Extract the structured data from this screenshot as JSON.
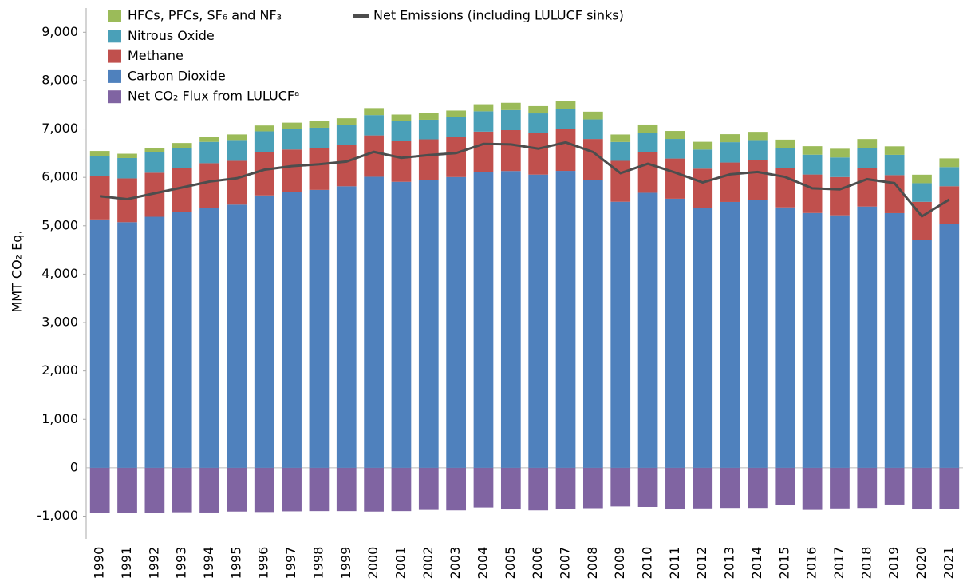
{
  "chart_data": {
    "type": "stacked-bar",
    "y_label": "MMT CO₂ Eq.",
    "categories": [
      "1990",
      "1991",
      "1992",
      "1993",
      "1994",
      "1995",
      "1996",
      "1997",
      "1998",
      "1999",
      "2000",
      "2001",
      "2002",
      "2003",
      "2004",
      "2005",
      "2006",
      "2007",
      "2008",
      "2009",
      "2010",
      "2011",
      "2012",
      "2013",
      "2014",
      "2015",
      "2016",
      "2017",
      "2018",
      "2019",
      "2020",
      "2021"
    ],
    "series": [
      {
        "name": "HFCs, PFCs, SF₆ and NF₃",
        "color": "#9bbb59",
        "values": [
          100,
          90,
          95,
          100,
          105,
          115,
          120,
          130,
          140,
          140,
          145,
          135,
          140,
          135,
          145,
          150,
          150,
          160,
          160,
          155,
          170,
          165,
          160,
          165,
          170,
          170,
          175,
          180,
          180,
          175,
          175,
          180
        ]
      },
      {
        "name": "Nitrous Oxide",
        "color": "#4aa0b8",
        "values": [
          415,
          420,
          420,
          415,
          440,
          430,
          435,
          425,
          420,
          415,
          420,
          410,
          405,
          405,
          420,
          415,
          410,
          420,
          405,
          390,
          400,
          405,
          395,
          420,
          420,
          420,
          410,
          405,
          420,
          420,
          385,
          395
        ]
      },
      {
        "name": "Methane",
        "color": "#c0504d",
        "values": [
          900,
          905,
          910,
          915,
          920,
          905,
          890,
          880,
          865,
          850,
          855,
          845,
          840,
          835,
          840,
          845,
          855,
          860,
          855,
          845,
          840,
          830,
          820,
          815,
          815,
          810,
          795,
          790,
          795,
          785,
          780,
          785
        ]
      },
      {
        "name": "Carbon Dioxide",
        "color": "#4f81bd",
        "values": [
          5131,
          5074,
          5186,
          5280,
          5373,
          5437,
          5627,
          5696,
          5741,
          5816,
          6012,
          5908,
          5946,
          6006,
          6106,
          6131,
          6057,
          6134,
          5938,
          5496,
          5682,
          5559,
          5360,
          5492,
          5536,
          5380,
          5264,
          5216,
          5397,
          5261,
          4715,
          5032
        ]
      },
      {
        "name": "Net CO₂ Flux from LULUCFᵃ",
        "color": "#8064a2",
        "values": [
          -935,
          -940,
          -940,
          -920,
          -925,
          -905,
          -915,
          -900,
          -895,
          -895,
          -905,
          -895,
          -870,
          -880,
          -820,
          -860,
          -880,
          -850,
          -835,
          -800,
          -810,
          -860,
          -840,
          -830,
          -830,
          -770,
          -870,
          -840,
          -830,
          -760,
          -860,
          -850
        ]
      },
      {
        "name": "Net Emissions (including LULUCF sinks)",
        "color": "#4d4d4d",
        "kind": "line",
        "values": [
          5611,
          5549,
          5671,
          5790,
          5913,
          5982,
          6157,
          6231,
          6271,
          6326,
          6527,
          6403,
          6461,
          6501,
          6691,
          6681,
          6592,
          6724,
          6523,
          6086,
          6282,
          6099,
          5895,
          6062,
          6111,
          6010,
          5774,
          5751,
          5962,
          5881,
          5195,
          5542
        ]
      }
    ],
    "ylim": [
      -1470,
      9500
    ],
    "yticks": [
      {
        "value": -1000,
        "label": "-1,000"
      },
      0,
      {
        "value": 1000,
        "label": "1,000"
      },
      {
        "value": 2000,
        "label": "2,000"
      },
      {
        "value": 3000,
        "label": "3,000"
      },
      {
        "value": 4000,
        "label": "4,000"
      },
      {
        "value": 5000,
        "label": "5,000"
      },
      {
        "value": 6000,
        "label": "6,000"
      },
      {
        "value": 7000,
        "label": "7,000"
      },
      {
        "value": 8000,
        "label": "8,000"
      },
      {
        "value": 9000,
        "label": "9,000"
      }
    ],
    "grid": false
  }
}
